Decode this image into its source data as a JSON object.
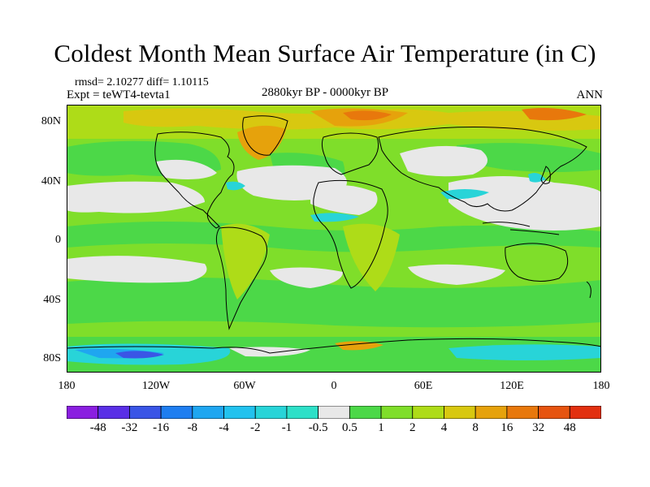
{
  "title": "Coldest Month Mean Surface Air Temperature (in C)",
  "rmsd_line": "rmsd= 2.10277 diff= 1.10115",
  "expt_line": "Expt = teWT4-tevta1",
  "period": "2880kyr BP - 0000kyr BP",
  "season": "ANN",
  "lat_ticks": [
    "80N",
    "40N",
    "0",
    "40S",
    "80S"
  ],
  "lon_ticks": [
    "180",
    "120W",
    "60W",
    "0",
    "60E",
    "120E",
    "180"
  ],
  "colorbar": {
    "labels": [
      "-48",
      "-32",
      "-16",
      "-8",
      "-4",
      "-2",
      "-1",
      "-0.5",
      "0.5",
      "1",
      "2",
      "4",
      "8",
      "16",
      "32",
      "48"
    ],
    "colors": [
      "#8a1fe0",
      "#5a2fe6",
      "#3a55e6",
      "#1f7ef0",
      "#1fa6f0",
      "#22c2ee",
      "#28d4d8",
      "#2ee0c8",
      "#e8e8e8",
      "#4cd848",
      "#7fde2a",
      "#aedc18",
      "#d8c810",
      "#e6a20c",
      "#e8780c",
      "#e65410",
      "#e23010"
    ]
  },
  "palette": {
    "land_outline": "#000000",
    "neutral": "#e8e8e8",
    "green": "#4cd848",
    "light_green": "#7fde2a",
    "yellow_green": "#aedc18",
    "yellow": "#d8c810",
    "orange": "#e6a20c",
    "dark_orange": "#e8780c",
    "cyan": "#28d4d8",
    "blue": "#1f7ef0"
  }
}
